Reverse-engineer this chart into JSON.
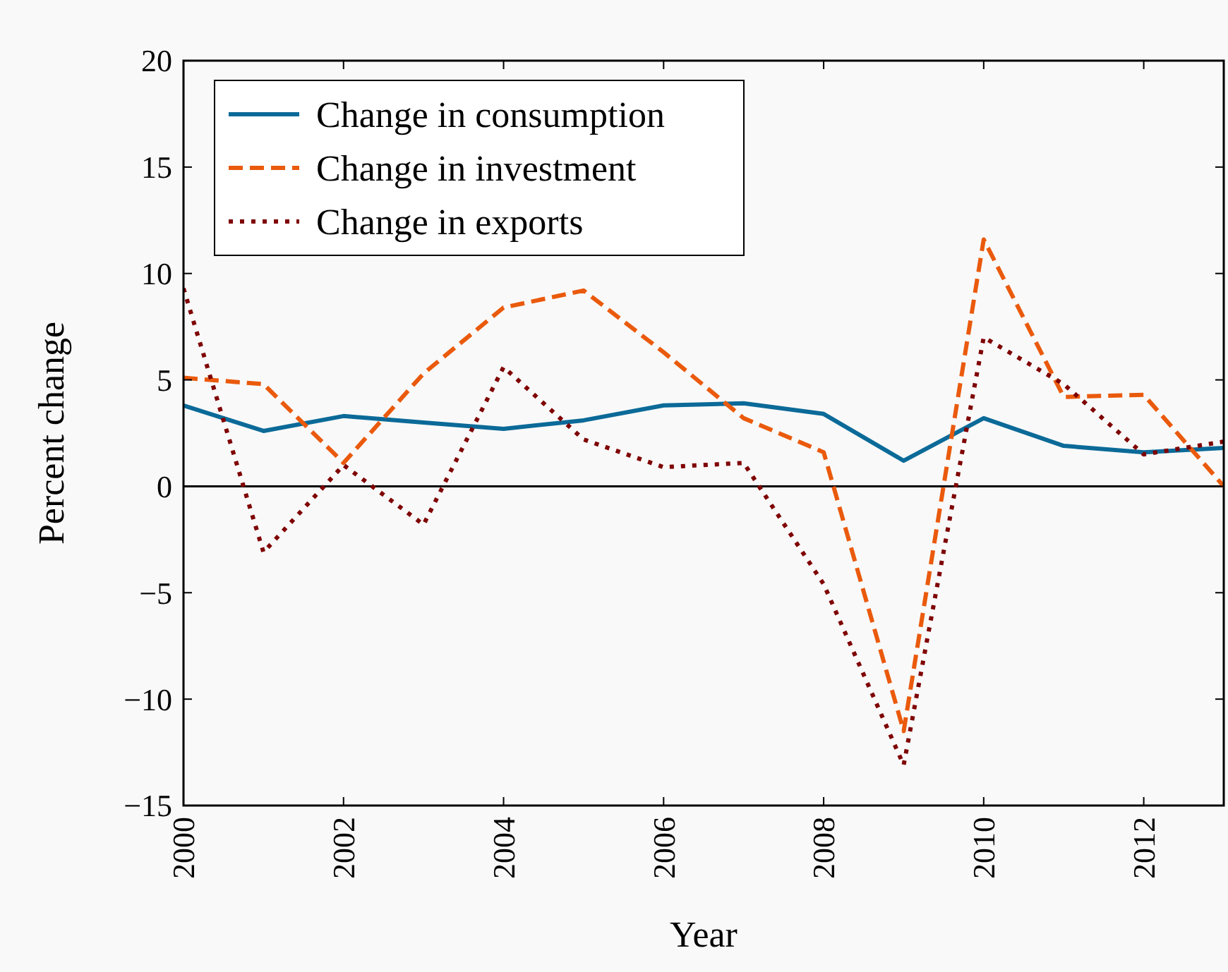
{
  "chart_data": {
    "type": "line",
    "xlabel": "Year",
    "ylabel": "Percent change",
    "x": [
      2000,
      2001,
      2002,
      2003,
      2004,
      2005,
      2006,
      2007,
      2008,
      2009,
      2010,
      2011,
      2012,
      2013
    ],
    "series": [
      {
        "name": "Change in consumption",
        "color": "#0b6a98",
        "line_style": "solid",
        "values": [
          3.8,
          2.6,
          3.3,
          3.0,
          2.7,
          3.1,
          3.8,
          3.9,
          3.4,
          1.2,
          3.2,
          1.9,
          1.6,
          1.8
        ]
      },
      {
        "name": "Change in investment",
        "color": "#ea5a0c",
        "line_style": "dashed",
        "values": [
          5.1,
          4.8,
          1.1,
          5.3,
          8.4,
          9.2,
          6.3,
          3.2,
          1.6,
          -11.5,
          11.6,
          4.2,
          4.3,
          0
        ]
      },
      {
        "name": "Change in exports",
        "color": "#7f0000",
        "line_style": "dotted",
        "values": [
          9.3,
          -3.1,
          1.0,
          -1.8,
          5.6,
          2.2,
          0.9,
          1.1,
          -4.6,
          -13.1,
          7.0,
          4.8,
          1.5,
          2.1
        ]
      }
    ],
    "xlim": [
      2000,
      2013
    ],
    "xticks": [
      2000,
      2002,
      2004,
      2006,
      2008,
      2010,
      2012
    ],
    "ylim": [
      -15,
      20
    ],
    "yticks": [
      {
        "value": -15,
        "label": "−15"
      },
      {
        "value": -10,
        "label": "−10"
      },
      {
        "value": -5,
        "label": "−5"
      },
      0,
      5,
      10,
      15,
      20
    ],
    "ref_lines": [
      {
        "axis": "y",
        "value": 0,
        "color": "#000000"
      }
    ],
    "grid": false,
    "legend": "top left"
  }
}
